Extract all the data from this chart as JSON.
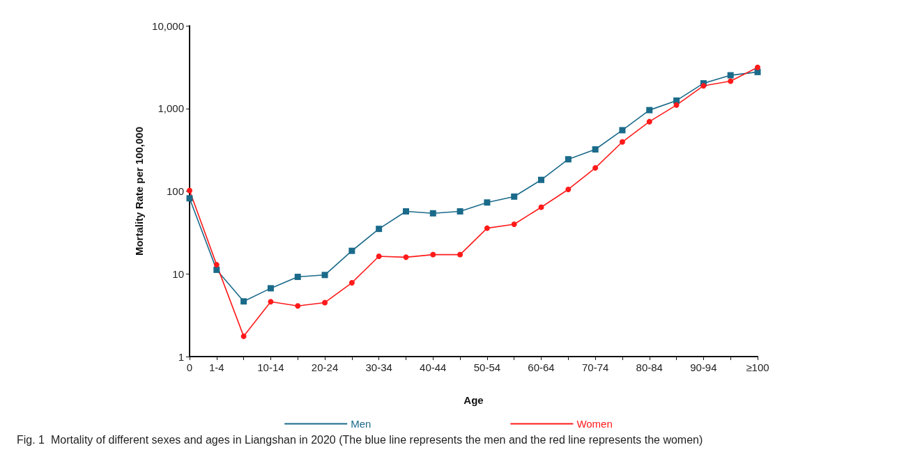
{
  "chart_data": {
    "type": "line",
    "xlabel": "Age",
    "ylabel": "Mortality Rate per 100,000",
    "categories": [
      "0",
      "1-4",
      null,
      "10-14",
      null,
      "20-24",
      null,
      "30-34",
      null,
      "40-44",
      null,
      "50-54",
      null,
      "60-64",
      null,
      "70-74",
      null,
      "80-84",
      null,
      "90-94",
      null,
      "≥100"
    ],
    "series": [
      {
        "name": "Men",
        "color": "#1a6a8a",
        "marker": "square",
        "values": [
          82,
          11.2,
          4.65,
          6.7,
          9.2,
          9.7,
          19,
          35,
          57,
          54,
          57,
          73,
          86,
          137,
          243,
          320,
          546,
          955,
          1245,
          2015,
          2520,
          2760
        ]
      },
      {
        "name": "Women",
        "color": "#ff1a1a",
        "marker": "circle",
        "values": [
          102,
          12.9,
          1.76,
          4.6,
          4.1,
          4.5,
          7.8,
          16.3,
          15.9,
          17.1,
          17.1,
          35.7,
          39.8,
          64,
          105,
          191,
          394,
          693,
          1100,
          1880,
          2140,
          3140
        ]
      }
    ],
    "log": "y",
    "ylim": [
      1,
      10000
    ],
    "yticks": [
      1,
      10,
      100,
      {
        "value": 1000,
        "label": "1,000"
      },
      {
        "value": 10000,
        "label": "10,000"
      }
    ],
    "grid": false,
    "legend": "bottom",
    "annotations": [
      "Fig. 1  Mortality of different sexes and ages in Liangshan in 2020 (The blue line represents the men and the red line represents the women)"
    ]
  }
}
